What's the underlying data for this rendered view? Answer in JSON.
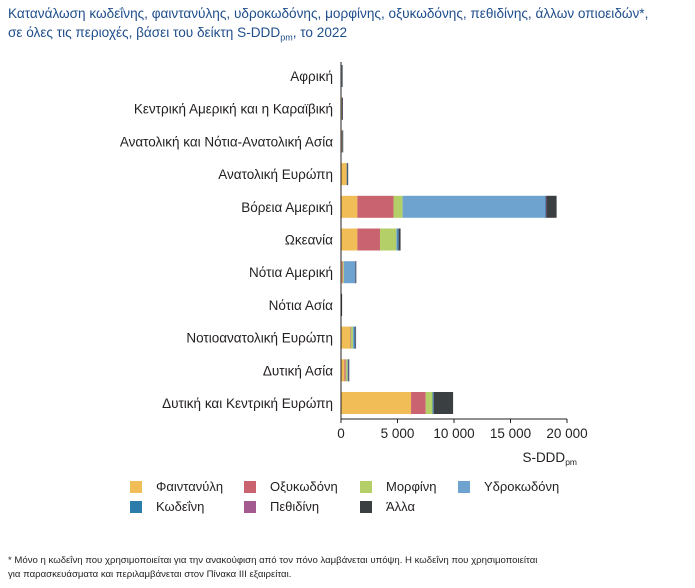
{
  "title_line1": "Κατανάλωση κωδεΐνης, φαιντανύλης, υδροκωδόνης, μορφίνης, οξυκωδόνης, πεθιδίνης, άλλων οπιοειδών*,",
  "title_line2_pre": "σε όλες τις περιοχές, βάσει του δείκτη S-DDD",
  "title_line2_sub": "pm",
  "title_line2_post": ", το 2022",
  "footnote_line1": "* Μόνο η κωδεΐνη που χρησιμοποιείται για την ανακούφιση από τον πόνο λαμβάνεται υπόψη. Η κωδεΐνη που χρησιμοποιείται",
  "footnote_line2": "για παρασκευάσματα και περιλαμβάνεται στον Πίνακα III εξαιρείται.",
  "colors": {
    "Φαιντανύλη": "#f0bd57",
    "Οξυκωδόνη": "#c9636f",
    "Μορφίνη": "#b5cf68",
    "Υδροκωδόνη": "#6fa3cf",
    "Κωδεΐνη": "#2b7bab",
    "Πεθιδίνη": "#a35a8e",
    "Άλλα": "#3a3f42"
  },
  "legend": [
    {
      "key": "Φαιντανύλη",
      "label": "Φαιντανύλη"
    },
    {
      "key": "Οξυκωδόνη",
      "label": "Οξυκωδόνη"
    },
    {
      "key": "Μορφίνη",
      "label": "Μορφίνη"
    },
    {
      "key": "Υδροκωδόνη",
      "label": "Υδροκωδόνη"
    },
    {
      "key": "Κωδεΐνη",
      "label": "Κωδεΐνη"
    },
    {
      "key": "Πεθιδίνη",
      "label": "Πεθιδίνη"
    },
    {
      "key": "Άλλα",
      "label": "Άλλα"
    }
  ],
  "chart_data": {
    "type": "bar",
    "orientation": "horizontal",
    "stacked": true,
    "title": "Κατανάλωση κωδεΐνης, φαιντανύλης, υδροκωδόνης, μορφίνης, οξυκωδόνης, πεθιδίνης, άλλων οπιοειδών*, σε όλες τις περιοχές, βάσει του δείκτη S-DDDpm, το 2022",
    "xlabel": "S-DDD",
    "xlabel_sub": "pm",
    "ylabel": "",
    "xlim": [
      0,
      20000
    ],
    "xticks": [
      0,
      5000,
      10000,
      15000,
      20000
    ],
    "xtick_labels": [
      "0",
      "5 000",
      "10 000",
      "15 000",
      "20 000"
    ],
    "grid": false,
    "legend_position": "bottom",
    "categories": [
      "Αφρική",
      "Κεντρική Αμερική και η Καραϊβική",
      "Ανατολική και Νότια-Ανατολική Ασία",
      "Ανατολική Ευρώπη",
      "Βόρεια Αμερική",
      "Ωκεανία",
      "Νότια Αμερική",
      "Νότια Ασία",
      "Νοτιοανατολική Ευρώπη",
      "Δυτική Ασία",
      "Δυτική και Κεντρική Ευρώπη"
    ],
    "series": [
      {
        "name": "Φαιντανύλη",
        "values": [
          15,
          40,
          40,
          450,
          1450,
          1450,
          100,
          5,
          800,
          300,
          6200
        ]
      },
      {
        "name": "Οξυκωδόνη",
        "values": [
          5,
          20,
          30,
          30,
          3200,
          2000,
          70,
          3,
          60,
          120,
          1300
        ]
      },
      {
        "name": "Μορφίνη",
        "values": [
          40,
          25,
          40,
          50,
          800,
          1450,
          80,
          20,
          200,
          150,
          600
        ]
      },
      {
        "name": "Υδροκωδόνη",
        "values": [
          0,
          5,
          0,
          0,
          12600,
          100,
          1000,
          0,
          100,
          50,
          0
        ]
      },
      {
        "name": "Κωδεΐνη",
        "values": [
          20,
          15,
          20,
          40,
          80,
          100,
          30,
          10,
          100,
          30,
          100
        ]
      },
      {
        "name": "Πεθιδίνη",
        "values": [
          10,
          10,
          10,
          10,
          50,
          20,
          20,
          5,
          20,
          30,
          20
        ]
      },
      {
        "name": "Άλλα",
        "values": [
          10,
          10,
          20,
          20,
          900,
          150,
          20,
          5,
          50,
          50,
          1700
        ]
      }
    ]
  }
}
